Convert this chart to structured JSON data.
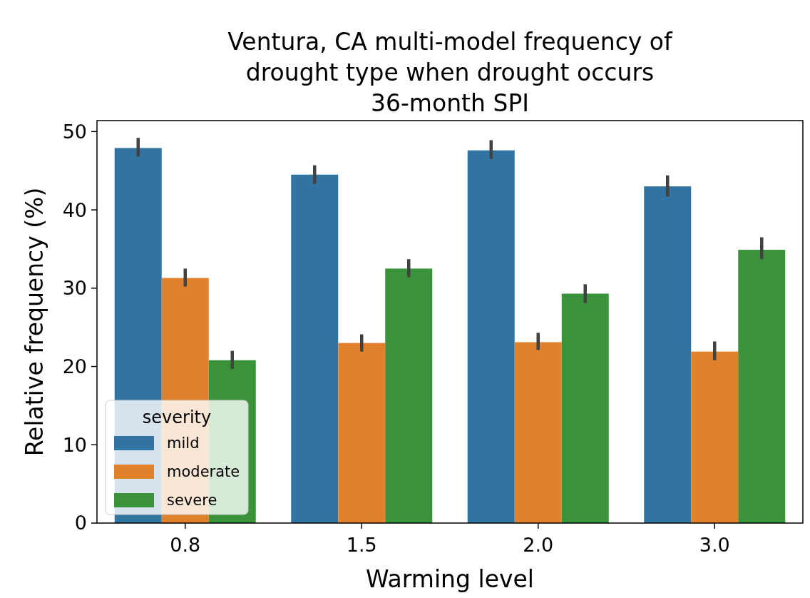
{
  "chart_data": {
    "type": "bar",
    "title": "Ventura, CA multi-model frequency of\ndrought type when drought occurs\n36-month SPI",
    "xlabel": "Warming level",
    "ylabel": "Relative frequency (%)",
    "legend_title": "severity",
    "legend": "bottom left",
    "categories": [
      "0.8",
      "1.5",
      "2.0",
      "3.0"
    ],
    "ylim": [
      0,
      51.4
    ],
    "yticks": [
      0,
      10,
      20,
      30,
      40,
      50
    ],
    "grid": false,
    "series": [
      {
        "name": "mild",
        "color": "#3274a1",
        "values": [
          47.9,
          44.5,
          47.6,
          43.0
        ],
        "errors": [
          [
            46.8,
            49.2
          ],
          [
            43.3,
            45.7
          ],
          [
            46.5,
            48.9
          ],
          [
            41.7,
            44.4
          ]
        ]
      },
      {
        "name": "moderate",
        "color": "#e1812c",
        "values": [
          31.3,
          23.0,
          23.1,
          21.9
        ],
        "errors": [
          [
            30.2,
            32.5
          ],
          [
            21.9,
            24.1
          ],
          [
            22.1,
            24.3
          ],
          [
            20.8,
            23.2
          ]
        ]
      },
      {
        "name": "severe",
        "color": "#3a923a",
        "values": [
          20.8,
          32.5,
          29.3,
          34.9
        ],
        "errors": [
          [
            19.7,
            22.0
          ],
          [
            31.4,
            33.7
          ],
          [
            28.1,
            30.5
          ],
          [
            33.7,
            36.5
          ]
        ]
      }
    ]
  }
}
